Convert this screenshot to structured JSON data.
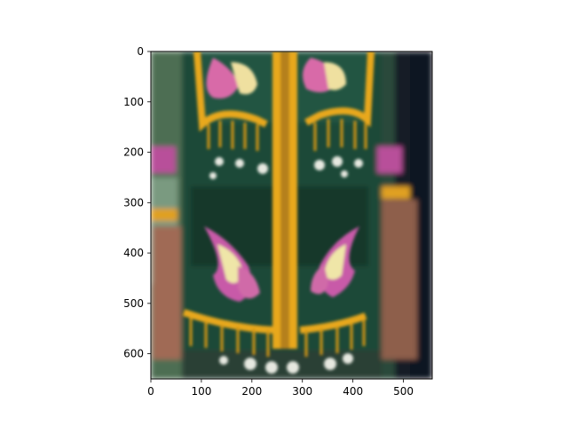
{
  "image_panel": {
    "description_icon": "embroidered-vest-image",
    "colors": {
      "fabric": "#1f4a3a",
      "fabric_dark": "#133226",
      "trim": "#e8a81a",
      "trim_light": "#f2c23a",
      "magenta": "#c85aa8",
      "cream": "#e6e0b8",
      "skin": "#a8705a",
      "background_left": "#5a7a5e",
      "background_right": "#1a2230"
    }
  },
  "chart_data": {
    "type": "image",
    "xlim": [
      0,
      557
    ],
    "ylim": [
      650,
      0
    ],
    "x_ticks": [
      0,
      100,
      200,
      300,
      400,
      500
    ],
    "y_ticks": [
      0,
      100,
      200,
      300,
      400,
      500,
      600
    ],
    "x_tick_labels": [
      "0",
      "100",
      "200",
      "300",
      "400",
      "500"
    ],
    "y_tick_labels": [
      "0",
      "100",
      "200",
      "300",
      "400",
      "500",
      "600"
    ],
    "grid": false
  }
}
